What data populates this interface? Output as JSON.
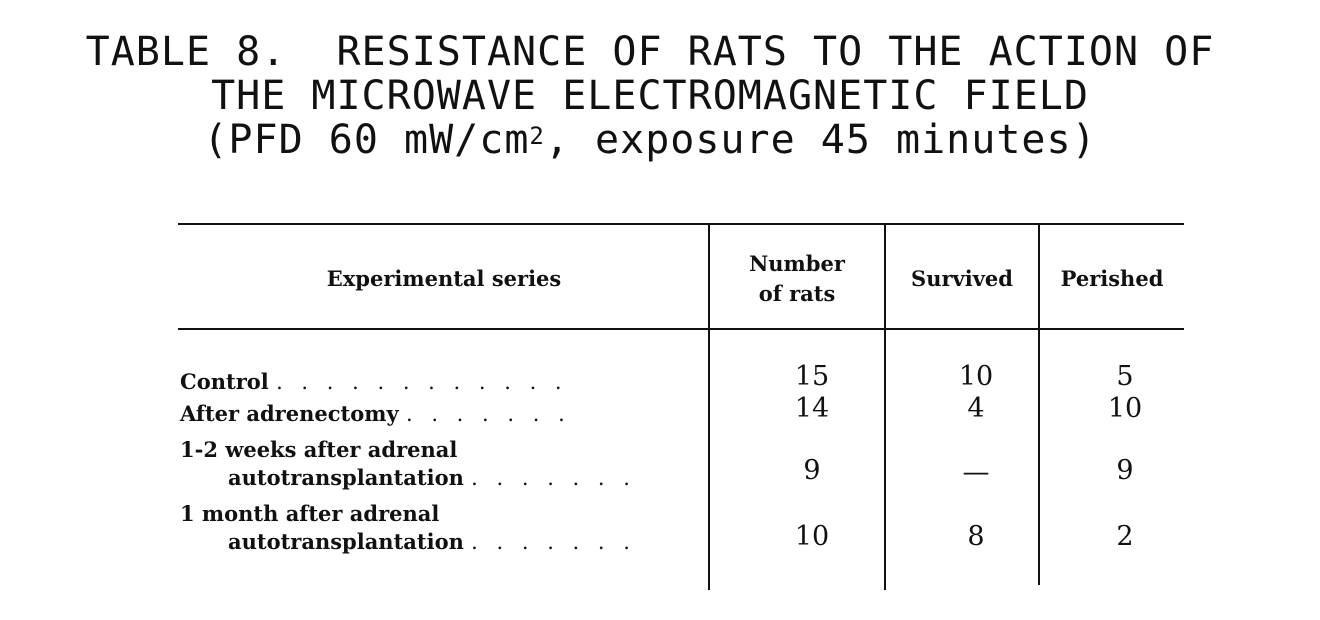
{
  "title": {
    "line1": "TABLE 8.  RESISTANCE OF RATS TO THE ACTION OF",
    "line2": "THE MICROWAVE ELECTROMAGNETIC FIELD",
    "line3_pre": "(PFD 60 mW/cm",
    "line3_sup": "2",
    "line3_post": ", exposure 45 minutes)"
  },
  "table": {
    "headers": {
      "series": "Experimental series",
      "number_line1": "Number",
      "number_line2": "of rats",
      "survived": "Survived",
      "perished": "Perished"
    },
    "rows": [
      {
        "label1": "Control",
        "label2": "",
        "dots": ". . . . . . . . . . . .",
        "number": "15",
        "survived": "10",
        "perished": "5"
      },
      {
        "label1": "After adrenectomy",
        "label2": "",
        "dots": ". . . . . . .",
        "number": "14",
        "survived": "4",
        "perished": "10"
      },
      {
        "label1": "1-2 weeks after adrenal",
        "label2": "autotransplantation",
        "dots": ". . . . . . .",
        "number": "9",
        "survived": "—",
        "perished": "9"
      },
      {
        "label1": "1 month after adrenal",
        "label2": "autotransplantation",
        "dots": ". . . . . . .",
        "number": "10",
        "survived": "8",
        "perished": "2"
      }
    ]
  }
}
